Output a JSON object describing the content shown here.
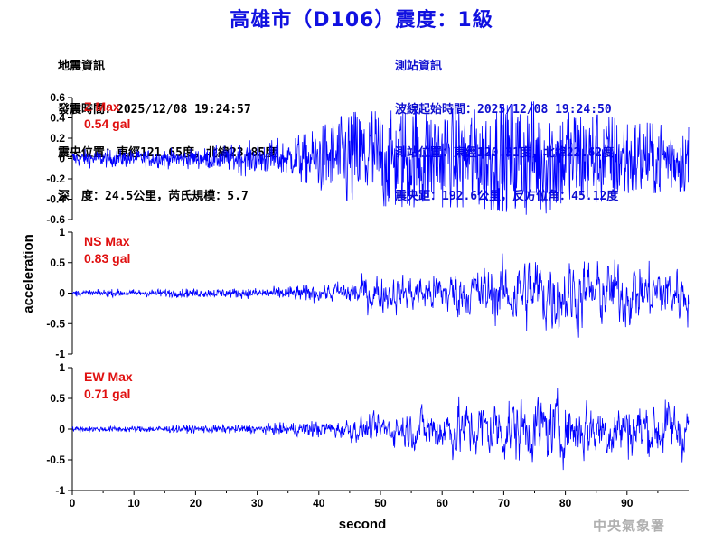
{
  "header": {
    "title": "高雄市（D106）震度：1級"
  },
  "quake_info": {
    "heading": "地震資訊",
    "time": "發震時間：2025/12/08 19:24:57",
    "epicenter": "震央位置：東經121.65度，北緯23.85度",
    "depth_mag": "深　度：24.5公里，芮氏規模：5.7"
  },
  "station_info": {
    "heading": "測站資訊",
    "wave_start": "波線起始時間：2025/12/08 19:24:50",
    "station_pos": "測站位置：東經120.31度，北緯22.62度",
    "distance": "震央距：192.6公里，反方位角：45.12度"
  },
  "watermark": "中央氣象署",
  "colors": {
    "title": "#1010e0",
    "trace": "#0000ff",
    "max_label": "#e01010",
    "station_text": "#1010d0"
  },
  "chart_data": {
    "type": "line",
    "xlabel": "second",
    "ylabel": "acceleration",
    "xlim": [
      0,
      100
    ],
    "x_ticks": [
      0,
      10,
      20,
      30,
      40,
      50,
      60,
      70,
      80,
      90
    ],
    "x_tick_labels": [
      "0",
      "10",
      "20",
      "30",
      "40",
      "50",
      "60",
      "70",
      "80",
      "90"
    ],
    "panels": [
      {
        "component": "Z",
        "max_label": "Z Max",
        "max_value": "0.54 gal",
        "peak": 0.54,
        "ylim": [
          -0.6,
          0.6
        ],
        "y_ticks": [
          0.6,
          0.4,
          0.2,
          0,
          -0.2,
          -0.4,
          -0.6
        ],
        "y_tick_labels": [
          "0.6",
          "0.4",
          "0.2",
          "0",
          "-0.2",
          "-0.4",
          "-0.6"
        ],
        "envelope": [
          [
            0,
            0.08
          ],
          [
            20,
            0.09
          ],
          [
            27,
            0.14
          ],
          [
            38,
            0.2
          ],
          [
            45,
            0.38
          ],
          [
            55,
            0.4
          ],
          [
            65,
            0.4
          ],
          [
            75,
            0.47
          ],
          [
            85,
            0.36
          ],
          [
            95,
            0.28
          ],
          [
            100,
            0.26
          ]
        ]
      },
      {
        "component": "NS",
        "max_label": "NS Max",
        "max_value": "0.83 gal",
        "peak": 0.83,
        "ylim": [
          -1,
          1
        ],
        "y_ticks": [
          1,
          0.5,
          0,
          -0.5,
          -1
        ],
        "y_tick_labels": [
          "1",
          "0.5",
          "0",
          "-0.5",
          "-1"
        ],
        "envelope": [
          [
            0,
            0.05
          ],
          [
            30,
            0.08
          ],
          [
            40,
            0.14
          ],
          [
            48,
            0.34
          ],
          [
            55,
            0.32
          ],
          [
            65,
            0.46
          ],
          [
            72,
            0.62
          ],
          [
            76,
            0.74
          ],
          [
            85,
            0.58
          ],
          [
            95,
            0.56
          ],
          [
            100,
            0.5
          ]
        ]
      },
      {
        "component": "EW",
        "max_label": "EW Max",
        "max_value": "0.71 gal",
        "peak": 0.71,
        "ylim": [
          -1,
          1
        ],
        "y_ticks": [
          1,
          0.5,
          0,
          -0.5,
          -1
        ],
        "y_tick_labels": [
          "1",
          "0.5",
          "0",
          "-0.5",
          "-1"
        ],
        "envelope": [
          [
            0,
            0.04
          ],
          [
            30,
            0.07
          ],
          [
            38,
            0.12
          ],
          [
            45,
            0.2
          ],
          [
            55,
            0.34
          ],
          [
            62,
            0.5
          ],
          [
            72,
            0.6
          ],
          [
            80,
            0.55
          ],
          [
            90,
            0.54
          ],
          [
            100,
            0.5
          ]
        ]
      }
    ]
  }
}
